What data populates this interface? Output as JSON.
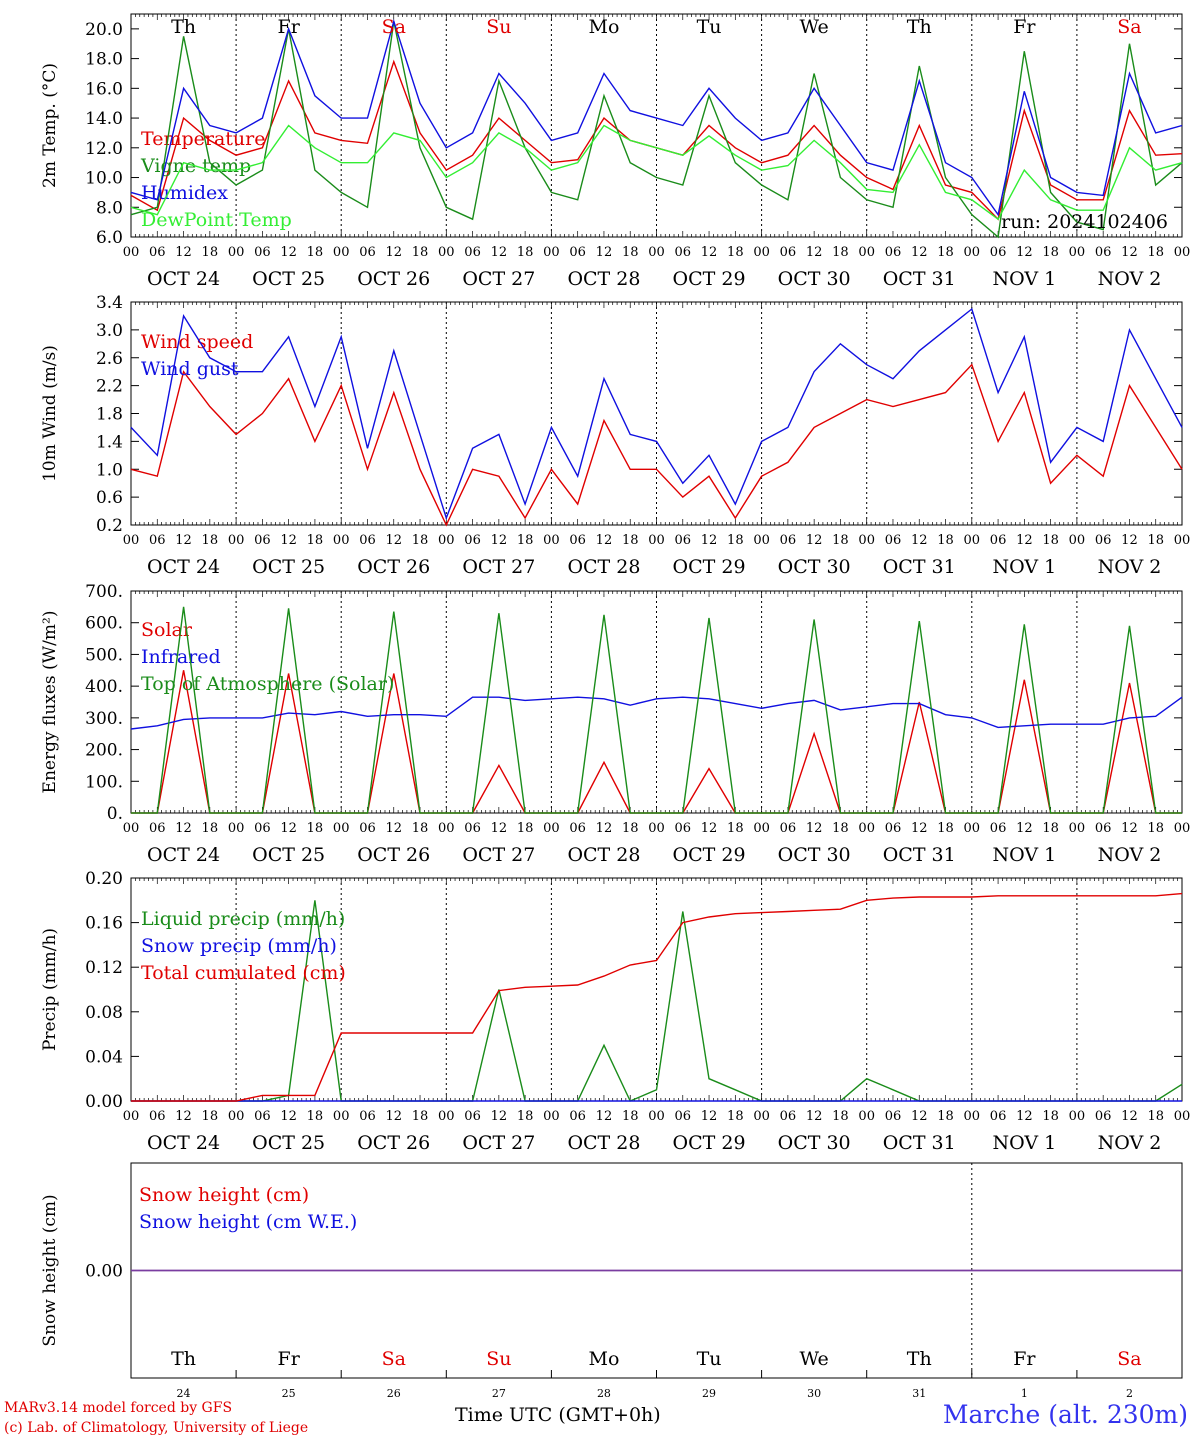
{
  "run": "run: 2024102406",
  "hours": [
    "00",
    "06",
    "12",
    "18"
  ],
  "dates": [
    "OCT 24",
    "OCT 25",
    "OCT 26",
    "OCT 27",
    "OCT 28",
    "OCT 29",
    "OCT 30",
    "OCT 31",
    "NOV  1",
    "NOV  2"
  ],
  "weekdays": [
    "Th",
    "Fr",
    "Sa",
    "Su",
    "Mo",
    "Tu",
    "We",
    "Th",
    "Fr",
    "Sa"
  ],
  "weekday_colors": [
    "#000000",
    "#000000",
    "#e00000",
    "#e00000",
    "#000000",
    "#000000",
    "#000000",
    "#000000",
    "#000000",
    "#e00000"
  ],
  "day_numbers": [
    "24",
    "25",
    "26",
    "27",
    "28",
    "29",
    "30",
    "31",
    "1",
    "2"
  ],
  "footer": {
    "line1": "MARv3.14 model forced by GFS",
    "line2": "(c) Lab. of Climatology, University of Liege",
    "time_label": "Time UTC (GMT+0h)",
    "station": "Marche (alt. 230m)"
  },
  "colors": {
    "red": "#e00000",
    "green": "#1a8c1a",
    "blue": "#1010e0",
    "lightgreen": "#33ee33",
    "purple": "#7a3da0"
  },
  "chart_data": [
    {
      "type": "line",
      "ylabel": "2m Temp. (°C)",
      "ylim": [
        6,
        21
      ],
      "yticks": [
        "20.0",
        "18.0",
        "16.0",
        "14.0",
        "12.0",
        "10.0",
        "8.0",
        "6.0"
      ],
      "x_unit": "hours since OCT 24 00 UTC",
      "x": [
        0,
        6,
        12,
        18,
        24,
        30,
        36,
        42,
        48,
        54,
        60,
        66,
        72,
        78,
        84,
        90,
        96,
        102,
        108,
        114,
        120,
        126,
        132,
        138,
        144,
        150,
        156,
        162,
        168,
        174,
        180,
        186,
        192,
        198,
        204,
        210,
        216,
        222,
        228,
        234,
        240
      ],
      "series": [
        {
          "name": "Temperature",
          "color": "#e00000",
          "values": [
            8.8,
            7.8,
            14.0,
            12.5,
            11.5,
            12.0,
            16.5,
            13.0,
            12.5,
            12.3,
            17.8,
            13.0,
            10.5,
            11.5,
            14.0,
            12.5,
            11.0,
            11.2,
            14.0,
            12.5,
            12.0,
            11.5,
            13.5,
            12.0,
            11.0,
            11.5,
            13.5,
            11.5,
            10.0,
            9.2,
            13.5,
            9.5,
            9.0,
            7.2,
            14.5,
            9.5,
            8.5,
            8.5,
            14.5,
            11.5,
            11.6
          ]
        },
        {
          "name": "Vigne temp",
          "color": "#1a8c1a",
          "values": [
            7.5,
            8.0,
            19.5,
            11.0,
            9.5,
            10.5,
            20.0,
            10.5,
            9.0,
            8.0,
            20.5,
            12.0,
            8.0,
            7.2,
            16.5,
            12.0,
            9.0,
            8.5,
            15.5,
            11.0,
            10.0,
            9.5,
            15.5,
            11.0,
            9.5,
            8.5,
            17.0,
            10.0,
            8.5,
            8.0,
            17.5,
            10.0,
            7.5,
            6.0,
            18.5,
            9.0,
            7.0,
            6.5,
            19.0,
            9.5,
            11.0
          ]
        },
        {
          "name": "Humidex",
          "color": "#1010e0",
          "values": [
            9.0,
            8.5,
            16.0,
            13.5,
            13.0,
            14.0,
            20.0,
            15.5,
            14.0,
            14.0,
            20.5,
            15.0,
            12.0,
            13.0,
            17.0,
            15.0,
            12.5,
            13.0,
            17.0,
            14.5,
            14.0,
            13.5,
            16.0,
            14.0,
            12.5,
            13.0,
            16.0,
            13.5,
            11.0,
            10.5,
            16.5,
            11.0,
            10.0,
            7.5,
            15.8,
            10.0,
            9.0,
            8.8,
            17.0,
            13.0,
            13.5
          ]
        },
        {
          "name": "DewPoint Temp",
          "color": "#33ee33",
          "values": [
            8.0,
            7.5,
            11.0,
            10.5,
            10.5,
            11.0,
            13.5,
            12.0,
            11.0,
            11.0,
            13.0,
            12.5,
            10.0,
            11.0,
            13.0,
            12.0,
            10.5,
            11.0,
            13.5,
            12.5,
            12.0,
            11.5,
            12.8,
            11.5,
            10.5,
            10.8,
            12.5,
            11.0,
            9.2,
            9.0,
            12.2,
            9.0,
            8.5,
            7.2,
            10.5,
            8.5,
            7.8,
            7.8,
            12.0,
            10.5,
            11.0
          ]
        }
      ]
    },
    {
      "type": "line",
      "ylabel": "10m Wind (m/s)",
      "ylim": [
        0.2,
        3.4
      ],
      "yticks": [
        "3.4",
        "3.0",
        "2.6",
        "2.2",
        "1.8",
        "1.4",
        "1.0",
        "0.6",
        "0.2"
      ],
      "x_unit": "hours since OCT 24 00 UTC",
      "x": [
        0,
        6,
        12,
        18,
        24,
        30,
        36,
        42,
        48,
        54,
        60,
        66,
        72,
        78,
        84,
        90,
        96,
        102,
        108,
        114,
        120,
        126,
        132,
        138,
        144,
        150,
        156,
        162,
        168,
        174,
        180,
        186,
        192,
        198,
        204,
        210,
        216,
        222,
        228,
        234,
        240
      ],
      "series": [
        {
          "name": "Wind speed",
          "color": "#e00000",
          "values": [
            1.0,
            0.9,
            2.4,
            1.9,
            1.5,
            1.8,
            2.3,
            1.4,
            2.2,
            1.0,
            2.1,
            1.0,
            0.2,
            1.0,
            0.9,
            0.3,
            1.0,
            0.5,
            1.7,
            1.0,
            1.0,
            0.6,
            0.9,
            0.3,
            0.9,
            1.1,
            1.6,
            1.8,
            2.0,
            1.9,
            2.0,
            2.1,
            2.5,
            1.4,
            2.1,
            0.8,
            1.2,
            0.9,
            2.2,
            1.6,
            1.0
          ]
        },
        {
          "name": "Wind gust",
          "color": "#1010e0",
          "values": [
            1.6,
            1.2,
            3.2,
            2.6,
            2.4,
            2.4,
            2.9,
            1.9,
            2.9,
            1.3,
            2.7,
            1.5,
            0.3,
            1.3,
            1.5,
            0.5,
            1.6,
            0.9,
            2.3,
            1.5,
            1.4,
            0.8,
            1.2,
            0.5,
            1.4,
            1.6,
            2.4,
            2.8,
            2.5,
            2.3,
            2.7,
            3.0,
            3.3,
            2.1,
            2.9,
            1.1,
            1.6,
            1.4,
            3.0,
            2.3,
            1.6
          ]
        }
      ]
    },
    {
      "type": "line",
      "ylabel": "Energy fluxes (W/m²)",
      "ylim": [
        0,
        700
      ],
      "yticks": [
        "700.",
        "600.",
        "500.",
        "400.",
        "300.",
        "200.",
        "100.",
        "0."
      ],
      "x_unit": "hours since OCT 24 00 UTC",
      "x": [
        0,
        6,
        12,
        18,
        24,
        30,
        36,
        42,
        48,
        54,
        60,
        66,
        72,
        78,
        84,
        90,
        96,
        102,
        108,
        114,
        120,
        126,
        132,
        138,
        144,
        150,
        156,
        162,
        168,
        174,
        180,
        186,
        192,
        198,
        204,
        210,
        216,
        222,
        228,
        234,
        240
      ],
      "series": [
        {
          "name": "Solar",
          "color": "#e00000",
          "values": [
            0,
            0,
            450,
            0,
            0,
            0,
            440,
            0,
            0,
            0,
            440,
            0,
            0,
            0,
            150,
            0,
            0,
            0,
            160,
            0,
            0,
            0,
            140,
            0,
            0,
            0,
            250,
            0,
            0,
            0,
            350,
            0,
            0,
            0,
            420,
            0,
            0,
            0,
            410,
            0,
            0
          ]
        },
        {
          "name": "Infrared",
          "color": "#1010e0",
          "values": [
            265,
            275,
            295,
            300,
            300,
            300,
            315,
            310,
            320,
            305,
            310,
            310,
            305,
            365,
            365,
            355,
            360,
            365,
            360,
            340,
            360,
            365,
            360,
            345,
            330,
            345,
            355,
            325,
            335,
            345,
            345,
            310,
            300,
            270,
            275,
            280,
            280,
            280,
            300,
            305,
            365
          ]
        },
        {
          "name": "Top of Atmosphere (Solar)",
          "color": "#1a8c1a",
          "values": [
            0,
            0,
            650,
            0,
            0,
            0,
            645,
            0,
            0,
            0,
            635,
            0,
            0,
            0,
            630,
            0,
            0,
            0,
            625,
            0,
            0,
            0,
            615,
            0,
            0,
            0,
            610,
            0,
            0,
            0,
            605,
            0,
            0,
            0,
            595,
            0,
            0,
            0,
            590,
            0,
            0
          ]
        }
      ]
    },
    {
      "type": "line",
      "ylabel": "Precip (mm/h)",
      "ylim": [
        0,
        0.2
      ],
      "yticks": [
        "0.20",
        "0.16",
        "0.12",
        "0.08",
        "0.04",
        "0.00"
      ],
      "x_unit": "hours since OCT 24 00 UTC",
      "x": [
        0,
        6,
        12,
        18,
        24,
        30,
        36,
        42,
        48,
        54,
        60,
        66,
        72,
        78,
        84,
        90,
        96,
        102,
        108,
        114,
        120,
        126,
        132,
        138,
        144,
        150,
        156,
        162,
        168,
        174,
        180,
        186,
        192,
        198,
        204,
        210,
        216,
        222,
        228,
        234,
        240
      ],
      "series": [
        {
          "name": "Liquid precip (mm/h)",
          "color": "#1a8c1a",
          "values": [
            0,
            0,
            0,
            0,
            0,
            0,
            0.005,
            0.18,
            0,
            0,
            0,
            0,
            0,
            0,
            0.1,
            0,
            0,
            0,
            0.05,
            0,
            0.01,
            0.17,
            0.02,
            0.01,
            0,
            0,
            0,
            0,
            0.02,
            0.01,
            0,
            0,
            0,
            0,
            0,
            0,
            0,
            0,
            0,
            0,
            0.015
          ]
        },
        {
          "name": "Snow precip (mm/h)",
          "color": "#1010e0",
          "values": [
            0,
            0,
            0,
            0,
            0,
            0,
            0,
            0,
            0,
            0,
            0,
            0,
            0,
            0,
            0,
            0,
            0,
            0,
            0,
            0,
            0,
            0,
            0,
            0,
            0,
            0,
            0,
            0,
            0,
            0,
            0,
            0,
            0,
            0,
            0,
            0,
            0,
            0,
            0,
            0,
            0
          ]
        },
        {
          "name": "Total cumulated (cm)",
          "color": "#e00000",
          "values": [
            0,
            0,
            0,
            0,
            0,
            0.005,
            0.005,
            0.005,
            0.061,
            0.061,
            0.061,
            0.061,
            0.061,
            0.061,
            0.099,
            0.102,
            0.103,
            0.104,
            0.112,
            0.122,
            0.126,
            0.16,
            0.165,
            0.168,
            0.169,
            0.17,
            0.171,
            0.172,
            0.18,
            0.182,
            0.183,
            0.183,
            0.183,
            0.184,
            0.184,
            0.184,
            0.184,
            0.184,
            0.184,
            0.184,
            0.186
          ]
        }
      ]
    },
    {
      "type": "line",
      "ylabel": "Snow height (cm)",
      "ylim": [
        -1,
        1
      ],
      "yticks": [
        "0.00"
      ],
      "x_unit": "hours since OCT 24 00 UTC",
      "x": [
        0,
        240
      ],
      "series": [
        {
          "name": "Snow height (cm)",
          "color": "#e00000",
          "values": [
            0,
            0
          ]
        },
        {
          "name": "Snow height (cm W.E.)",
          "color": "#1010e0",
          "values": [
            0,
            0
          ]
        }
      ]
    }
  ]
}
